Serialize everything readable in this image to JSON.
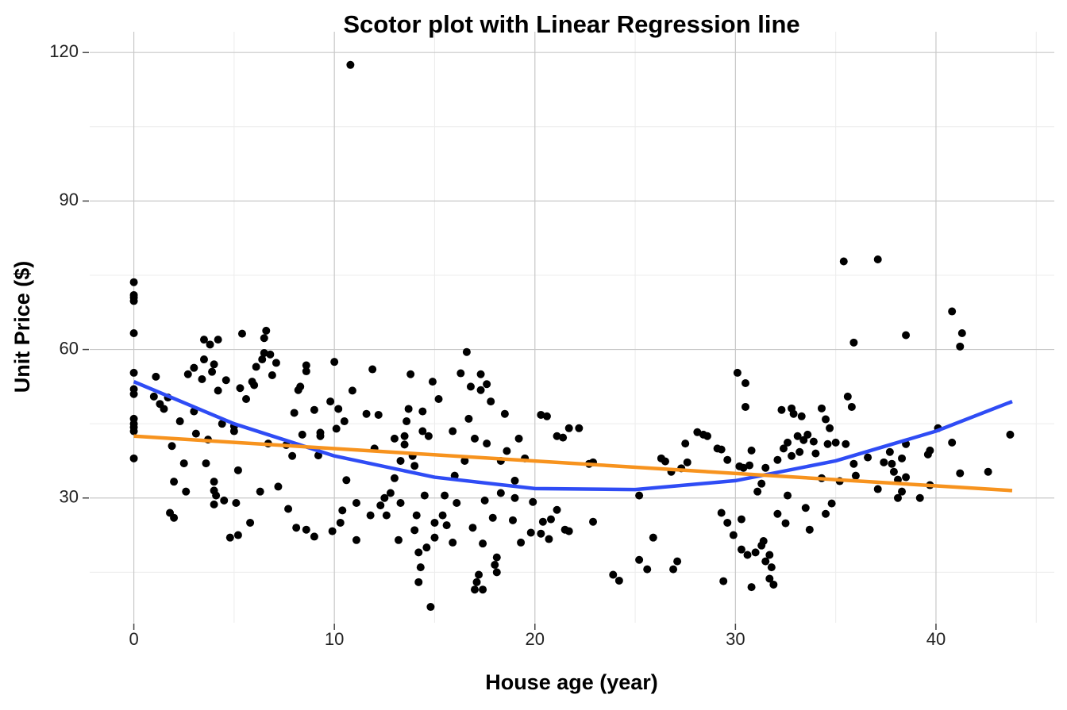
{
  "chart_data": {
    "type": "scatter",
    "title": "Scotor plot with Linear Regression line",
    "x_label": "House age (year)",
    "y_label": "Unit Price ($)",
    "xlim": [
      -2.2,
      45.9
    ],
    "ylim": [
      4.8,
      124.2
    ],
    "xticks": [
      0,
      10,
      20,
      30,
      40
    ],
    "yticks": [
      30,
      60,
      90,
      120
    ],
    "xminorticks": [
      5,
      15,
      25,
      35,
      45
    ],
    "yminorticks": [
      15,
      45,
      75,
      105
    ],
    "grid": true,
    "color": "#000000",
    "points": [
      [
        0,
        73.6
      ],
      [
        0,
        71
      ],
      [
        0,
        70.5
      ],
      [
        0,
        69.8
      ],
      [
        0,
        63.3
      ],
      [
        0,
        55.3
      ],
      [
        0,
        52
      ],
      [
        0,
        51
      ],
      [
        0,
        46
      ],
      [
        0,
        45
      ],
      [
        0,
        44.3
      ],
      [
        0,
        43.5
      ],
      [
        0,
        38
      ],
      [
        1.1,
        54.5
      ],
      [
        1,
        50.5
      ],
      [
        1.3,
        49
      ],
      [
        1.5,
        48
      ],
      [
        1.7,
        50.3
      ],
      [
        1.8,
        27
      ],
      [
        1.9,
        40.5
      ],
      [
        2,
        33.3
      ],
      [
        2,
        26
      ],
      [
        2.3,
        45.5
      ],
      [
        2.5,
        37
      ],
      [
        2.6,
        31.3
      ],
      [
        2.7,
        55
      ],
      [
        3,
        56.3
      ],
      [
        3,
        47.5
      ],
      [
        3.1,
        43
      ],
      [
        3.4,
        54
      ],
      [
        3.5,
        58
      ],
      [
        3.5,
        62
      ],
      [
        3.6,
        37
      ],
      [
        3.7,
        41.8
      ],
      [
        3.8,
        61
      ],
      [
        3.9,
        55.5
      ],
      [
        4,
        57
      ],
      [
        4,
        33.3
      ],
      [
        4,
        31.5
      ],
      [
        4,
        28.7
      ],
      [
        4.1,
        30.5
      ],
      [
        4.2,
        62
      ],
      [
        4.2,
        51.7
      ],
      [
        4.4,
        45
      ],
      [
        4.5,
        29.5
      ],
      [
        4.6,
        53.8
      ],
      [
        4.8,
        22
      ],
      [
        5,
        43.5
      ],
      [
        5,
        44.5
      ],
      [
        5.1,
        29
      ],
      [
        5.2,
        35.6
      ],
      [
        5.2,
        22.5
      ],
      [
        5.3,
        52.2
      ],
      [
        5.4,
        63.2
      ],
      [
        5.6,
        50
      ],
      [
        5.8,
        25
      ],
      [
        5.9,
        53.5
      ],
      [
        6,
        52.8
      ],
      [
        6.1,
        56.5
      ],
      [
        6.3,
        31.3
      ],
      [
        6.4,
        58
      ],
      [
        6.5,
        59.3
      ],
      [
        6.5,
        62.3
      ],
      [
        6.6,
        63.8
      ],
      [
        6.7,
        41
      ],
      [
        6.8,
        59
      ],
      [
        6.9,
        54.8
      ],
      [
        7.1,
        57.3
      ],
      [
        7.2,
        32.3
      ],
      [
        7.6,
        40.7
      ],
      [
        7.7,
        27.8
      ],
      [
        7.9,
        38.5
      ],
      [
        8,
        47.2
      ],
      [
        8.1,
        24
      ],
      [
        8.2,
        51.8
      ],
      [
        8.3,
        52.5
      ],
      [
        8.4,
        42.8
      ],
      [
        8.6,
        23.6
      ],
      [
        8.6,
        56.8
      ],
      [
        8.6,
        55.6
      ],
      [
        9,
        22.2
      ],
      [
        9,
        47.8
      ],
      [
        9.3,
        42.5
      ],
      [
        9.2,
        38.6
      ],
      [
        9.3,
        43.2
      ],
      [
        9.8,
        49.5
      ],
      [
        9.9,
        23.3
      ],
      [
        10,
        57.5
      ],
      [
        10.1,
        44
      ],
      [
        10.2,
        48
      ],
      [
        10.3,
        25
      ],
      [
        10.4,
        27.5
      ],
      [
        10.5,
        45.5
      ],
      [
        10.6,
        33.6
      ],
      [
        10.8,
        117.5
      ],
      [
        10.9,
        51.7
      ],
      [
        11.1,
        29
      ],
      [
        11.1,
        21.5
      ],
      [
        11.6,
        47
      ],
      [
        11.9,
        56
      ],
      [
        11.8,
        26.5
      ],
      [
        12,
        40
      ],
      [
        12.2,
        46.8
      ],
      [
        12.3,
        28.5
      ],
      [
        12.5,
        30
      ],
      [
        12.6,
        26.5
      ],
      [
        12.8,
        31
      ],
      [
        13,
        42
      ],
      [
        13,
        34
      ],
      [
        13.2,
        21.5
      ],
      [
        13.3,
        37.5
      ],
      [
        13.3,
        29
      ],
      [
        13.5,
        42.5
      ],
      [
        13.5,
        40.8
      ],
      [
        13.6,
        45.5
      ],
      [
        13.7,
        48
      ],
      [
        13.8,
        55
      ],
      [
        13.9,
        38.5
      ],
      [
        14,
        36.5
      ],
      [
        14.1,
        26.5
      ],
      [
        14,
        23.5
      ],
      [
        14.2,
        19
      ],
      [
        14.2,
        13
      ],
      [
        14.3,
        16
      ],
      [
        14.4,
        47.5
      ],
      [
        14.4,
        43.5
      ],
      [
        14.5,
        30.5
      ],
      [
        14.6,
        20
      ],
      [
        14.7,
        42.5
      ],
      [
        14.9,
        53.5
      ],
      [
        15,
        22
      ],
      [
        15,
        25
      ],
      [
        15.2,
        50
      ],
      [
        15.4,
        26.5
      ],
      [
        15.5,
        30.5
      ],
      [
        15.6,
        24.5
      ],
      [
        14.8,
        8
      ],
      [
        15.9,
        43.5
      ],
      [
        15.9,
        21
      ],
      [
        16,
        34.5
      ],
      [
        16.1,
        29
      ],
      [
        16.3,
        55.2
      ],
      [
        16.5,
        37.5
      ],
      [
        16.7,
        46
      ],
      [
        16.8,
        52.5
      ],
      [
        16.9,
        24
      ],
      [
        17,
        42
      ],
      [
        17,
        11.5
      ],
      [
        17.1,
        13
      ],
      [
        17.2,
        14.5
      ],
      [
        17.3,
        51.8
      ],
      [
        17.3,
        55
      ],
      [
        17.4,
        20.8
      ],
      [
        17.5,
        29.5
      ],
      [
        17.6,
        53
      ],
      [
        17.6,
        41
      ],
      [
        17.8,
        49.5
      ],
      [
        16.6,
        59.5
      ],
      [
        17.9,
        26
      ],
      [
        18,
        16.5
      ],
      [
        18.1,
        18
      ],
      [
        18.3,
        37.5
      ],
      [
        18.3,
        31
      ],
      [
        18.5,
        47
      ],
      [
        18.6,
        39.5
      ],
      [
        17.4,
        11.5
      ],
      [
        18.9,
        25.5
      ],
      [
        19,
        33.5
      ],
      [
        19,
        30
      ],
      [
        19.2,
        42
      ],
      [
        19.3,
        21
      ],
      [
        19.5,
        38
      ],
      [
        18.1,
        15
      ],
      [
        19.8,
        23
      ],
      [
        20.3,
        46.8
      ],
      [
        20.6,
        46.5
      ],
      [
        19.9,
        29.2
      ],
      [
        20.3,
        22.8
      ],
      [
        20.4,
        25.2
      ],
      [
        20.7,
        21.7
      ],
      [
        20.8,
        25.7
      ],
      [
        21.1,
        27.6
      ],
      [
        21.1,
        42.5
      ],
      [
        21.4,
        42.2
      ],
      [
        21.7,
        44.1
      ],
      [
        21.5,
        23.6
      ],
      [
        21.7,
        23.3
      ],
      [
        22.2,
        44.1
      ],
      [
        22.7,
        36.9
      ],
      [
        22.9,
        37.2
      ],
      [
        22.9,
        25.2
      ],
      [
        23.9,
        14.5
      ],
      [
        24.2,
        13.3
      ],
      [
        25.2,
        30.5
      ],
      [
        25.2,
        17.5
      ],
      [
        25.6,
        15.6
      ],
      [
        25.9,
        22
      ],
      [
        26.3,
        38
      ],
      [
        26.5,
        37.4
      ],
      [
        26.8,
        35.3
      ],
      [
        26.9,
        15.6
      ],
      [
        27.1,
        17.2
      ],
      [
        27.3,
        36
      ],
      [
        27.5,
        41
      ],
      [
        27.6,
        37.2
      ],
      [
        28.1,
        43.3
      ],
      [
        28.4,
        42.8
      ],
      [
        28.6,
        42.5
      ],
      [
        29.1,
        40
      ],
      [
        29.3,
        39.8
      ],
      [
        29.3,
        27
      ],
      [
        29.4,
        13.2
      ],
      [
        29.6,
        25
      ],
      [
        29.6,
        37.7
      ],
      [
        29.9,
        22.5
      ],
      [
        30.1,
        55.3
      ],
      [
        30.2,
        36.4
      ],
      [
        30.3,
        19.6
      ],
      [
        30.3,
        25.7
      ],
      [
        30.4,
        36.1
      ],
      [
        30.5,
        53.2
      ],
      [
        30.5,
        48.4
      ],
      [
        30.7,
        36.6
      ],
      [
        30.6,
        18.5
      ],
      [
        30.8,
        12
      ],
      [
        30.8,
        39.6
      ],
      [
        31,
        19
      ],
      [
        31.1,
        31.3
      ],
      [
        31.3,
        32.9
      ],
      [
        31.3,
        20.4
      ],
      [
        31.4,
        21.3
      ],
      [
        31.5,
        36.1
      ],
      [
        31.5,
        17.2
      ],
      [
        31.7,
        18.5
      ],
      [
        31.7,
        13.7
      ],
      [
        31.8,
        16
      ],
      [
        31.9,
        12.5
      ],
      [
        32.1,
        37.7
      ],
      [
        32.1,
        26.8
      ],
      [
        32.3,
        47.8
      ],
      [
        32.4,
        40
      ],
      [
        32.5,
        24.9
      ],
      [
        32.6,
        41.2
      ],
      [
        32.6,
        30.5
      ],
      [
        32.8,
        48.1
      ],
      [
        32.8,
        38.5
      ],
      [
        32.9,
        47
      ],
      [
        33.1,
        42.5
      ],
      [
        33.2,
        39.3
      ],
      [
        33.3,
        46.5
      ],
      [
        33.4,
        41.7
      ],
      [
        33.5,
        28
      ],
      [
        33.6,
        42.8
      ],
      [
        33.7,
        23.6
      ],
      [
        33.9,
        41.4
      ],
      [
        34,
        39
      ],
      [
        34.3,
        48.1
      ],
      [
        34.3,
        34
      ],
      [
        34.5,
        45.9
      ],
      [
        34.5,
        26.8
      ],
      [
        34.6,
        40.9
      ],
      [
        34.7,
        44.1
      ],
      [
        34.8,
        28.9
      ],
      [
        35,
        41.2
      ],
      [
        35.2,
        33.4
      ],
      [
        35.4,
        77.8
      ],
      [
        35.5,
        40.9
      ],
      [
        35.6,
        50.5
      ],
      [
        35.8,
        48.4
      ],
      [
        35.9,
        61.4
      ],
      [
        35.9,
        36.9
      ],
      [
        36,
        34.5
      ],
      [
        36.6,
        38.2
      ],
      [
        37.1,
        31.8
      ],
      [
        37.1,
        78.2
      ],
      [
        37.4,
        37.2
      ],
      [
        37.7,
        39.3
      ],
      [
        37.8,
        36.9
      ],
      [
        37.9,
        35.3
      ],
      [
        38.1,
        33.7
      ],
      [
        38.1,
        30
      ],
      [
        38.3,
        31.3
      ],
      [
        38.3,
        38
      ],
      [
        38.5,
        34.2
      ],
      [
        38.5,
        62.9
      ],
      [
        38.5,
        40.9
      ],
      [
        39.2,
        30
      ],
      [
        39.6,
        38.8
      ],
      [
        39.7,
        39.6
      ],
      [
        39.7,
        32.6
      ],
      [
        40.1,
        44.1
      ],
      [
        40.8,
        67.7
      ],
      [
        40.8,
        41.2
      ],
      [
        41.2,
        60.6
      ],
      [
        41.3,
        63.3
      ],
      [
        41.2,
        35
      ],
      [
        42.6,
        35.3
      ],
      [
        43.7,
        42.8
      ]
    ],
    "fits": [
      {
        "color": "#2f4cf5",
        "x": [
          0,
          5,
          10,
          15,
          20,
          25,
          30,
          35,
          40,
          43.8
        ],
        "y": [
          53.5,
          45.0,
          38.5,
          34.2,
          31.9,
          31.7,
          33.5,
          37.5,
          43.5,
          49.5
        ]
      },
      {
        "color": "#f7931e",
        "x": [
          0,
          43.8
        ],
        "y": [
          42.5,
          31.5
        ]
      }
    ]
  }
}
